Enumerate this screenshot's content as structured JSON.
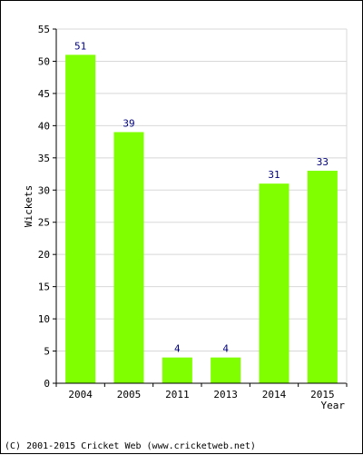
{
  "chart_data": {
    "type": "bar",
    "categories": [
      "2004",
      "2005",
      "2011",
      "2013",
      "2014",
      "2015"
    ],
    "values": [
      51,
      39,
      4,
      4,
      31,
      33
    ],
    "xlabel": "Year",
    "ylabel": "Wickets",
    "ylim": [
      0,
      55
    ],
    "yticks": [
      0,
      5,
      10,
      15,
      20,
      25,
      30,
      35,
      40,
      45,
      50,
      55
    ],
    "grid": true,
    "bar_color": "#80ff00",
    "label_color": "#000080"
  },
  "footer": {
    "copyright": "(C) 2001-2015 Cricket Web (www.cricketweb.net)"
  }
}
